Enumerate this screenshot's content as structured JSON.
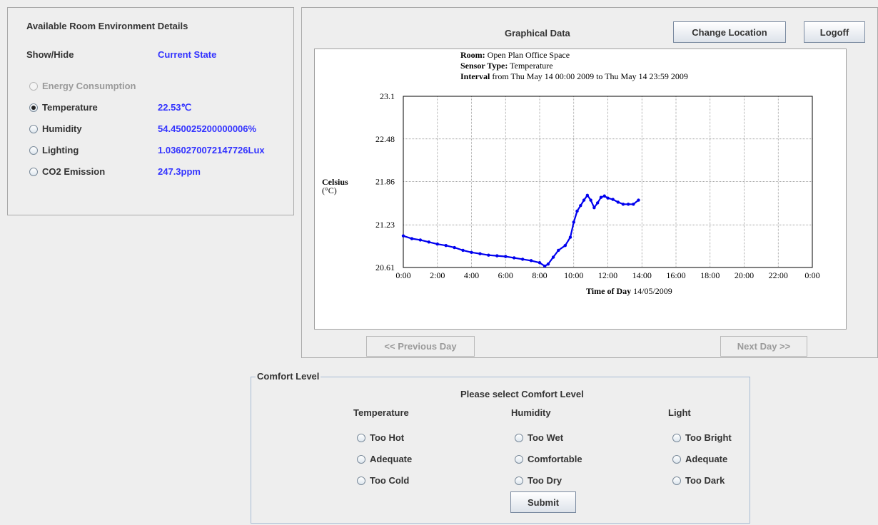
{
  "left_panel": {
    "title": "Available Room Environment Details",
    "col_showhide": "Show/Hide",
    "col_current": "Current State",
    "items": [
      {
        "label": "Energy Consumption",
        "value": "",
        "selected": false,
        "disabled": true
      },
      {
        "label": "Temperature",
        "value": "22.53℃",
        "selected": true,
        "disabled": false
      },
      {
        "label": "Humidity",
        "value": "54.450025200000006%",
        "selected": false,
        "disabled": false
      },
      {
        "label": "Lighting",
        "value": "1.0360270072147726Lux",
        "selected": false,
        "disabled": false
      },
      {
        "label": "CO2 Emission",
        "value": "247.3ppm",
        "selected": false,
        "disabled": false
      }
    ]
  },
  "graph_panel": {
    "title": "Graphical Data",
    "change_location_label": "Change Location",
    "logoff_label": "Logoff",
    "prev_day_label": "<< Previous Day",
    "next_day_label": "Next Day >>"
  },
  "chart_data": {
    "type": "scatter",
    "room_label": "Room:",
    "room_value": "Open Plan Office Space",
    "sensor_label": "Sensor Type:",
    "sensor_value": "Temperature",
    "interval_label": "Interval",
    "interval_value": "from Thu May 14 00:00 2009 to Thu May 14 23:59 2009",
    "ylabel": "Celsius",
    "ylabel_unit": "(°C)",
    "xlabel": "Time of Day",
    "xlabel_date": "14/05/2009",
    "ylim": [
      20.61,
      23.1
    ],
    "xlim": [
      0,
      24
    ],
    "yticks": [
      "23.1",
      "22.48",
      "21.86",
      "21.23",
      "20.61"
    ],
    "yticks_values": [
      23.1,
      22.48,
      21.86,
      21.23,
      20.61
    ],
    "xticks": [
      "0:00",
      "2:00",
      "4:00",
      "6:00",
      "8:00",
      "10:00",
      "12:00",
      "14:00",
      "16:00",
      "18:00",
      "20:00",
      "22:00",
      "0:00"
    ],
    "grid": true,
    "series_color": "#0000ee",
    "series": [
      {
        "x": [
          0,
          0.5,
          1,
          1.5,
          2,
          2.5,
          3,
          3.5,
          4,
          4.5,
          5,
          5.5,
          6,
          6.5,
          7,
          7.5,
          8,
          8.3,
          8.5,
          8.8,
          9.1,
          9.5,
          9.8,
          10,
          10.2,
          10.4,
          10.6,
          10.8,
          11,
          11.2,
          11.4,
          11.6,
          11.8,
          12,
          12.3,
          12.6,
          12.9,
          13.2,
          13.5,
          13.8
        ],
        "y": [
          21.07,
          21.03,
          21.01,
          20.98,
          20.95,
          20.93,
          20.9,
          20.86,
          20.83,
          20.81,
          20.79,
          20.78,
          20.77,
          20.75,
          20.73,
          20.71,
          20.68,
          20.63,
          20.66,
          20.76,
          20.86,
          20.93,
          21.05,
          21.27,
          21.43,
          21.51,
          21.59,
          21.66,
          21.59,
          21.48,
          21.55,
          21.63,
          21.65,
          21.62,
          21.6,
          21.56,
          21.53,
          21.53,
          21.53,
          21.59
        ]
      }
    ]
  },
  "comfort": {
    "legend": "Comfort Level",
    "prompt": "Please select Comfort Level",
    "columns": [
      {
        "header": "Temperature",
        "options": [
          "Too Hot",
          "Adequate",
          "Too Cold"
        ]
      },
      {
        "header": "Humidity",
        "options": [
          "Too Wet",
          "Comfortable",
          "Too Dry"
        ]
      },
      {
        "header": "Light",
        "options": [
          "Too Bright",
          "Adequate",
          "Too Dark"
        ]
      }
    ],
    "submit_label": "Submit"
  }
}
